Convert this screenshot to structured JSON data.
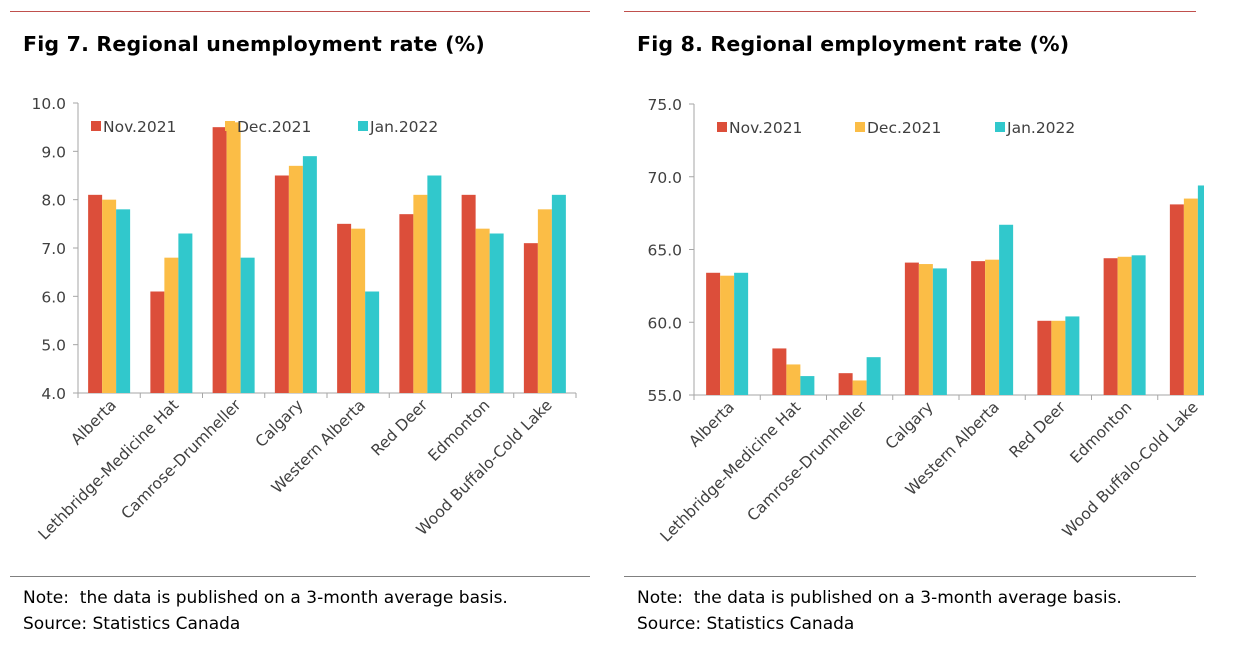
{
  "colors": {
    "nov": "#dc4e3a",
    "dec": "#fbbd46",
    "jan": "#31c8cc",
    "axis": "#a6a6a6",
    "tick_text": "#404040",
    "rule_top": "#c0504d"
  },
  "notes": {
    "note": "Note:  the data is published on a 3-month average basis.",
    "source": "Source: Statistics Canada"
  },
  "chart_data": [
    {
      "type": "bar",
      "title": "Fig 7. Regional unemployment rate (%)",
      "categories": [
        "Alberta",
        "Lethbridge-Medicine Hat",
        "Camrose-Drumheller",
        "Calgary",
        "Western Alberta",
        "Red Deer",
        "Edmonton",
        "Wood Buffalo-Cold Lake"
      ],
      "series": [
        {
          "name": "Nov.2021",
          "values": [
            8.1,
            6.1,
            9.5,
            8.5,
            7.5,
            7.7,
            8.1,
            7.1
          ]
        },
        {
          "name": "Dec.2021",
          "values": [
            8.0,
            6.8,
            9.6,
            8.7,
            7.4,
            8.1,
            7.4,
            7.8
          ]
        },
        {
          "name": "Jan.2022",
          "values": [
            7.8,
            7.3,
            6.8,
            8.9,
            6.1,
            8.5,
            7.3,
            8.1
          ]
        }
      ],
      "ylim": [
        4.0,
        10.0
      ],
      "yticks": [
        "4.0",
        "5.0",
        "6.0",
        "7.0",
        "8.0",
        "9.0",
        "10.0"
      ],
      "legend": "top-left inside",
      "grid": false
    },
    {
      "type": "bar",
      "title": "Fig 8. Regional employment rate (%)",
      "categories": [
        "Alberta",
        "Lethbridge-Medicine Hat",
        "Camrose-Drumheller",
        "Calgary",
        "Western Alberta",
        "Red Deer",
        "Edmonton",
        "Wood Buffalo-Cold Lake"
      ],
      "series": [
        {
          "name": "Nov.2021",
          "values": [
            63.4,
            58.2,
            56.5,
            64.1,
            64.2,
            60.1,
            64.4,
            68.1
          ]
        },
        {
          "name": "Dec.2021",
          "values": [
            63.2,
            57.1,
            56.0,
            64.0,
            64.3,
            60.1,
            64.5,
            68.5
          ]
        },
        {
          "name": "Jan.2022",
          "values": [
            63.4,
            56.3,
            57.6,
            63.7,
            66.7,
            60.4,
            64.6,
            69.4
          ]
        }
      ],
      "ylim": [
        55.0,
        75.0
      ],
      "yticks": [
        "55.0",
        "60.0",
        "65.0",
        "70.0",
        "75.0"
      ],
      "legend": "top-left inside",
      "grid": false
    }
  ]
}
